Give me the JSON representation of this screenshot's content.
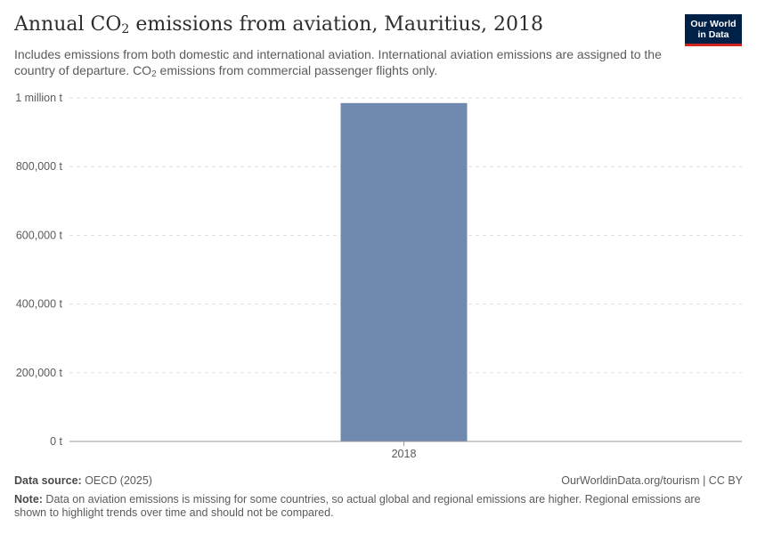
{
  "header": {
    "title_prefix": "Annual CO",
    "title_sub": "2",
    "title_suffix": " emissions from aviation, Mauritius, 2018",
    "subtitle_part1": "Includes emissions from both domestic and international aviation. International aviation emissions are assigned to the country of departure. CO",
    "subtitle_sub": "2",
    "subtitle_part2": " emissions from commercial passenger flights only."
  },
  "logo": {
    "line1": "Our World",
    "line2": "in Data",
    "bg_color": "#002147",
    "accent_color": "#ce261e"
  },
  "chart_data": {
    "type": "bar",
    "categories": [
      "2018"
    ],
    "values": [
      985000
    ],
    "unit": "t",
    "ylim": [
      0,
      1000000
    ],
    "yticks": [
      0,
      200000,
      400000,
      600000,
      800000,
      1000000
    ],
    "ytick_labels": [
      "0 t",
      "200,000 t",
      "400,000 t",
      "600,000 t",
      "800,000 t",
      "1 million t"
    ],
    "grid": true,
    "bar_color": "#6f89b1",
    "legend": "none"
  },
  "footer": {
    "source_label": "Data source:",
    "source_value": " OECD (2025)",
    "link": "OurWorldinData.org/tourism | CC BY",
    "note_label": "Note:",
    "note_text": " Data on aviation emissions is missing for some countries, so actual global and regional emissions are higher. Regional emissions are shown to highlight trends over time and should not be compared."
  }
}
